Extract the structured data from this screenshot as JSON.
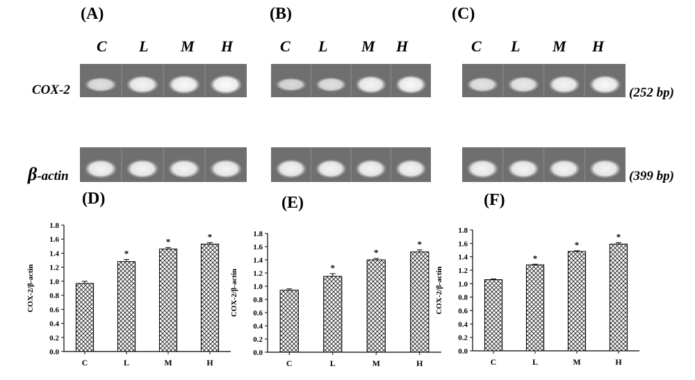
{
  "panels": {
    "gel": [
      {
        "letter": "(A)",
        "lanes": [
          "C",
          "L",
          "M",
          "H"
        ],
        "cox_intensity": [
          0.55,
          0.85,
          0.92,
          0.95
        ],
        "actin_intensity": [
          0.85,
          0.85,
          0.85,
          0.85
        ]
      },
      {
        "letter": "(B)",
        "lanes": [
          "C",
          "L",
          "M",
          "H"
        ],
        "cox_intensity": [
          0.45,
          0.55,
          0.85,
          0.9
        ],
        "actin_intensity": [
          0.85,
          0.85,
          0.85,
          0.85
        ]
      },
      {
        "letter": "(C)",
        "lanes": [
          "C",
          "L",
          "M",
          "H"
        ],
        "cox_intensity": [
          0.6,
          0.7,
          0.85,
          0.9
        ],
        "actin_intensity": [
          0.85,
          0.85,
          0.85,
          0.85
        ]
      }
    ]
  },
  "labels": {
    "cox2": "COX-2",
    "actin_beta": "β",
    "actin_rest": "-actin",
    "cox2_size": "(252 bp)",
    "actin_size": "(399 bp)"
  },
  "colors": {
    "gel_background": "#6f6f6f",
    "gel_separator": "#8a8a8a",
    "band": "#ffffff"
  },
  "chart_data": [
    {
      "type": "bar",
      "title": "(D)",
      "categories": [
        "C",
        "L",
        "M",
        "H"
      ],
      "values": [
        0.97,
        1.28,
        1.46,
        1.53
      ],
      "errors": [
        0.03,
        0.03,
        0.02,
        0.02
      ],
      "significance": [
        "",
        "*",
        "*",
        "*"
      ],
      "ylabel": "COX-2/β-actin",
      "ylim": [
        0,
        1.8
      ],
      "yticks": [
        "0.0",
        "0.2",
        "0.4",
        "0.6",
        "0.8",
        "1.0",
        "1.2",
        "1.4",
        "1.6",
        "1.8"
      ]
    },
    {
      "type": "bar",
      "title": "(E)",
      "categories": [
        "C",
        "L",
        "M",
        "H"
      ],
      "values": [
        0.94,
        1.15,
        1.4,
        1.52
      ],
      "errors": [
        0.02,
        0.04,
        0.02,
        0.03
      ],
      "significance": [
        "",
        "*",
        "*",
        "*"
      ],
      "ylabel": "COX-2/β-actin",
      "ylim": [
        0,
        1.8
      ],
      "yticks": [
        "0.0",
        "0.2",
        "0.4",
        "0.6",
        "0.8",
        "1.0",
        "1.2",
        "1.4",
        "1.6",
        "1.8"
      ]
    },
    {
      "type": "bar",
      "title": "(F)",
      "categories": [
        "C",
        "L",
        "M",
        "H"
      ],
      "values": [
        1.06,
        1.28,
        1.48,
        1.59
      ],
      "errors": [
        0.01,
        0.01,
        0.01,
        0.02
      ],
      "significance": [
        "",
        "*",
        "*",
        "*"
      ],
      "ylabel": "COX-2/β-actin",
      "ylim": [
        0,
        1.8
      ],
      "yticks": [
        "0.0",
        "0.2",
        "0.4",
        "0.6",
        "0.8",
        "1.0",
        "1.2",
        "1.4",
        "1.6",
        "1.8"
      ]
    }
  ]
}
